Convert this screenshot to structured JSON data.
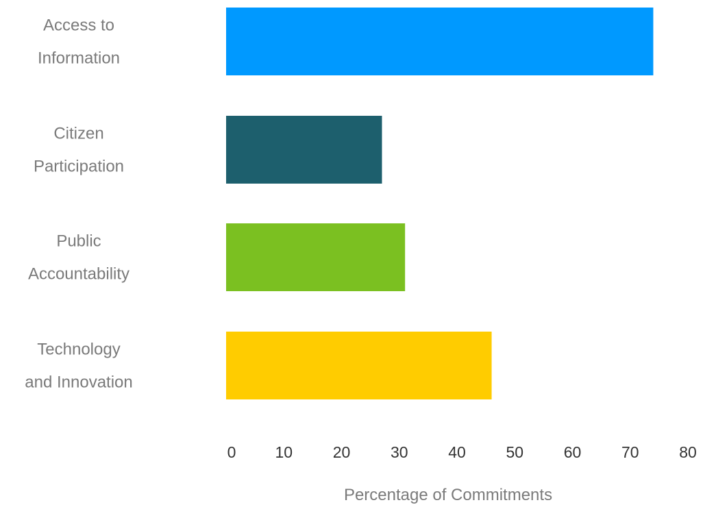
{
  "chart_data": {
    "type": "bar",
    "orientation": "horizontal",
    "categories": [
      [
        "Access to",
        "Information"
      ],
      [
        "Citizen",
        "Participation"
      ],
      [
        "Public",
        "Accountability"
      ],
      [
        "Technology",
        "and Innovation"
      ]
    ],
    "values": [
      74,
      27,
      31,
      46
    ],
    "colors": [
      "#0099ff",
      "#1d5f6d",
      "#7bc021",
      "#ffcc00"
    ],
    "xlabel": "Percentage of  Commitments",
    "xlim": [
      0,
      80
    ],
    "xticks": [
      0,
      10,
      20,
      30,
      40,
      50,
      60,
      70,
      80
    ],
    "grid": false,
    "legend": "none"
  }
}
